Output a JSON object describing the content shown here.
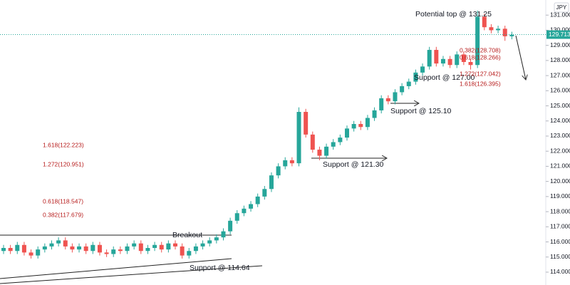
{
  "chart_data": {
    "type": "candlestick",
    "currency": "JPY",
    "ylim": [
      113.15,
      132.0
    ],
    "yticks": [
      {
        "value": 114,
        "label": "114.000"
      },
      {
        "value": 115,
        "label": "115.000"
      },
      {
        "value": 116,
        "label": "116.000"
      },
      {
        "value": 117,
        "label": "117.000"
      },
      {
        "value": 118,
        "label": "118.000"
      },
      {
        "value": 119,
        "label": "119.000"
      },
      {
        "value": 120,
        "label": "120.000"
      },
      {
        "value": 121,
        "label": "121.000"
      },
      {
        "value": 122,
        "label": "122.000"
      },
      {
        "value": 123,
        "label": "123.000"
      },
      {
        "value": 124,
        "label": "124.000"
      },
      {
        "value": 125,
        "label": "125.000"
      },
      {
        "value": 126,
        "label": "126.000"
      },
      {
        "value": 127,
        "label": "127.000"
      },
      {
        "value": 128,
        "label": "128.000"
      },
      {
        "value": 129,
        "label": "129.000"
      },
      {
        "value": 130,
        "label": "130.000"
      },
      {
        "value": 131,
        "label": "131.000"
      }
    ],
    "last_price": {
      "value": 129.713,
      "label": "129.713"
    },
    "up_color": "#26a69a",
    "down_color": "#ef5350",
    "open": [
      115.4,
      115.6,
      115.4,
      115.8,
      115.3,
      115.1,
      115.5,
      115.7,
      115.9,
      116.1,
      115.7,
      115.5,
      115.7,
      115.4,
      115.8,
      115.3,
      115.2,
      115.5,
      115.4,
      115.7,
      115.9,
      115.4,
      115.6,
      115.8,
      115.5,
      115.9,
      115.7,
      115.1,
      115.4,
      115.7,
      115.9,
      116.1,
      116.3,
      116.7,
      117.4,
      117.9,
      118.2,
      118.5,
      119.0,
      119.5,
      120.4,
      121.0,
      121.4,
      121.2,
      124.6,
      123.1,
      122.1,
      121.7,
      122.3,
      122.6,
      122.9,
      123.5,
      123.8,
      123.6,
      124.2,
      124.7,
      125.5,
      125.3,
      125.9,
      126.3,
      126.6,
      127.2,
      127.6,
      128.7,
      127.8,
      128.1,
      127.7,
      128.4,
      127.9,
      127.7,
      130.9,
      130.2,
      130.0,
      130.1,
      129.6
    ],
    "high": [
      115.8,
      115.8,
      116.0,
      116.0,
      115.5,
      115.7,
      115.9,
      116.1,
      116.3,
      116.3,
      115.9,
      115.9,
      115.9,
      116.0,
      116.0,
      115.5,
      115.7,
      115.7,
      115.9,
      116.1,
      116.1,
      115.8,
      116.0,
      116.0,
      116.1,
      116.1,
      115.9,
      115.6,
      115.9,
      116.1,
      116.3,
      116.5,
      116.9,
      117.6,
      118.1,
      118.4,
      118.7,
      119.2,
      119.7,
      120.6,
      121.2,
      121.6,
      121.6,
      124.9,
      124.8,
      123.3,
      122.3,
      122.5,
      122.8,
      123.1,
      123.7,
      124.0,
      124.0,
      124.4,
      124.9,
      125.7,
      125.7,
      126.1,
      126.5,
      126.8,
      127.4,
      127.8,
      128.9,
      128.9,
      128.3,
      128.3,
      128.6,
      128.6,
      128.1,
      131.3,
      131.1,
      130.4,
      130.3,
      130.3,
      129.9
    ],
    "low": [
      115.2,
      115.2,
      115.2,
      115.1,
      114.9,
      114.9,
      115.3,
      115.5,
      115.7,
      115.5,
      115.3,
      115.3,
      115.2,
      115.2,
      115.1,
      115.0,
      115.0,
      115.2,
      115.2,
      115.5,
      115.2,
      115.2,
      115.4,
      115.3,
      115.3,
      115.5,
      114.9,
      114.9,
      115.2,
      115.5,
      115.7,
      115.9,
      116.1,
      116.5,
      117.2,
      117.7,
      118.0,
      118.3,
      118.8,
      119.3,
      120.2,
      120.8,
      121.0,
      121.0,
      122.9,
      121.9,
      121.4,
      121.5,
      122.1,
      122.4,
      122.7,
      123.3,
      123.4,
      123.4,
      124.0,
      124.5,
      125.1,
      125.1,
      125.7,
      126.1,
      126.4,
      127.0,
      127.4,
      127.6,
      127.6,
      127.5,
      127.5,
      127.7,
      127.4,
      127.5,
      130.0,
      129.8,
      129.8,
      129.3,
      129.4
    ],
    "close": [
      115.6,
      115.4,
      115.8,
      115.3,
      115.1,
      115.5,
      115.7,
      115.9,
      116.1,
      115.7,
      115.5,
      115.7,
      115.4,
      115.8,
      115.3,
      115.2,
      115.5,
      115.4,
      115.7,
      115.9,
      115.4,
      115.6,
      115.8,
      115.5,
      115.9,
      115.7,
      115.1,
      115.4,
      115.7,
      115.9,
      116.1,
      116.3,
      116.7,
      117.4,
      117.9,
      118.2,
      118.5,
      119.0,
      119.5,
      120.4,
      121.0,
      121.4,
      121.2,
      124.6,
      123.1,
      122.1,
      121.7,
      122.3,
      122.6,
      122.9,
      123.5,
      123.8,
      123.6,
      124.2,
      124.7,
      125.5,
      125.3,
      125.9,
      126.3,
      126.6,
      127.2,
      127.6,
      128.7,
      127.8,
      128.1,
      127.7,
      128.4,
      127.9,
      127.7,
      130.9,
      130.2,
      130.0,
      130.1,
      129.6,
      129.7
    ],
    "annotations": [
      "Potential top @ 131.25",
      "0.382(128.708)",
      "0.618(128.266)",
      "Support @ 127.00",
      "1.272(127.042)",
      "1.618(126.395)",
      "Support @ 125.10",
      "1.618(122.223)",
      "1.272(120.951)",
      "Support @ 121.30",
      "0.618(118.547)",
      "0.382(117.679)",
      "Breakout",
      "Support @ 114.64"
    ]
  }
}
